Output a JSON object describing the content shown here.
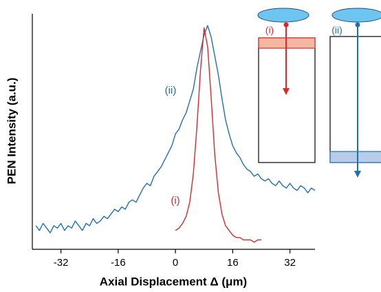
{
  "chart_data": {
    "type": "line",
    "xlabel": "Axial Displacement Δ (μm)",
    "ylabel": "PEN Intensity (a.u.)",
    "xlim": [
      -40,
      39
    ],
    "xticks": [
      -32,
      -16,
      0,
      16,
      32
    ],
    "ylim": [
      0,
      1
    ],
    "series": [
      {
        "name": "(ii)",
        "color": "#1f6fb5",
        "x": [
          -39,
          -38,
          -37,
          -36,
          -35,
          -34,
          -33,
          -32,
          -31,
          -30,
          -29,
          -28,
          -27,
          -26,
          -25,
          -24,
          -23,
          -22,
          -21,
          -20,
          -19,
          -18,
          -17,
          -16,
          -15,
          -14,
          -13,
          -12,
          -11,
          -10,
          -9,
          -8,
          -7,
          -6,
          -5,
          -4,
          -3,
          -2,
          -1,
          0,
          1,
          2,
          3,
          4,
          5,
          6,
          7,
          8,
          9,
          10,
          11,
          12,
          13,
          14,
          15,
          16,
          17,
          18,
          19,
          20,
          21,
          22,
          23,
          24,
          25,
          26,
          27,
          28,
          29,
          30,
          31,
          32,
          33,
          34,
          35,
          36,
          37,
          38,
          39
        ],
        "values": [
          0.1,
          0.08,
          0.11,
          0.09,
          0.07,
          0.1,
          0.09,
          0.11,
          0.08,
          0.1,
          0.09,
          0.12,
          0.1,
          0.08,
          0.11,
          0.1,
          0.13,
          0.11,
          0.12,
          0.14,
          0.13,
          0.15,
          0.17,
          0.16,
          0.18,
          0.17,
          0.2,
          0.21,
          0.2,
          0.23,
          0.26,
          0.28,
          0.27,
          0.31,
          0.33,
          0.35,
          0.38,
          0.41,
          0.44,
          0.49,
          0.51,
          0.55,
          0.58,
          0.63,
          0.68,
          0.77,
          0.84,
          0.91,
          0.95,
          0.9,
          0.82,
          0.74,
          0.64,
          0.55,
          0.49,
          0.44,
          0.41,
          0.39,
          0.36,
          0.34,
          0.33,
          0.31,
          0.32,
          0.3,
          0.29,
          0.3,
          0.28,
          0.27,
          0.29,
          0.27,
          0.26,
          0.28,
          0.26,
          0.25,
          0.27,
          0.26,
          0.24,
          0.26,
          0.25
        ]
      },
      {
        "name": "(i)",
        "color": "#e0252b",
        "x": [
          0,
          1,
          2,
          3,
          4,
          5,
          6,
          7,
          8,
          9,
          10,
          11,
          12,
          13,
          14,
          15,
          16,
          17,
          18,
          19,
          20,
          21,
          22,
          23,
          24
        ],
        "values": [
          0.08,
          0.09,
          0.11,
          0.14,
          0.2,
          0.32,
          0.52,
          0.76,
          0.94,
          0.86,
          0.64,
          0.4,
          0.24,
          0.15,
          0.1,
          0.08,
          0.06,
          0.05,
          0.05,
          0.04,
          0.04,
          0.04,
          0.03,
          0.04,
          0.04
        ]
      }
    ],
    "inset_labels": [
      "(i)",
      "(ii)"
    ]
  }
}
